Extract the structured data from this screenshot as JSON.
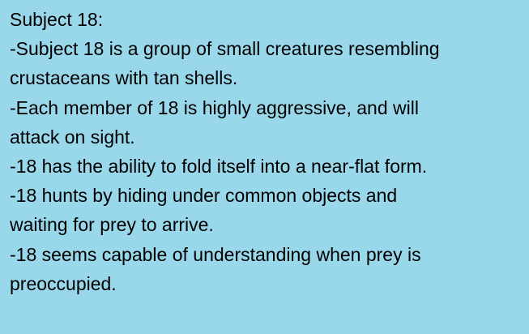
{
  "colors": {
    "background": "#99d8ea",
    "text": "#000000"
  },
  "note": {
    "lines": [
      "Subject 18:",
      "-Subject 18 is a group of small creatures resembling",
      "crustaceans with tan shells.",
      "-Each member of 18 is highly aggressive, and will",
      "attack on sight.",
      "-18 has the ability to fold itself into a near-flat form.",
      "-18 hunts by hiding under common objects and",
      "waiting for prey to arrive.",
      "-18 seems capable of understanding when prey is",
      "preoccupied."
    ]
  }
}
